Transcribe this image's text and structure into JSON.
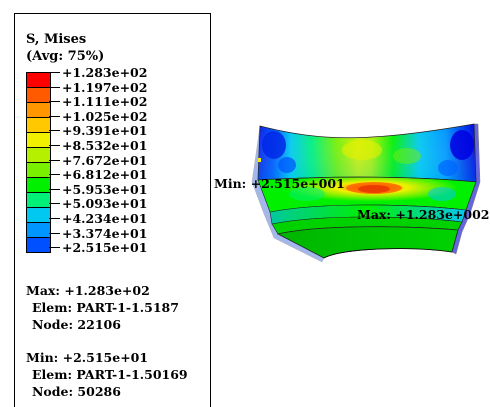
{
  "legend": {
    "title": "S, Mises",
    "subtitle": "(Avg: 75%)",
    "ticks": [
      "+1.283e+02",
      "+1.197e+02",
      "+1.111e+02",
      "+1.025e+02",
      "+9.391e+01",
      "+8.532e+01",
      "+7.672e+01",
      "+6.812e+01",
      "+5.953e+01",
      "+5.093e+01",
      "+4.234e+01",
      "+3.374e+01",
      "+2.515e+01"
    ],
    "colors": [
      "#ff0000",
      "#ff5a00",
      "#ff9600",
      "#ffc800",
      "#f0f000",
      "#b4f000",
      "#78f000",
      "#00f000",
      "#00f078",
      "#00c8f0",
      "#0096ff",
      "#0050ff",
      "#0000e0"
    ]
  },
  "max_info": {
    "line1": "Max: +1.283e+02",
    "line2": "Elem: PART-1-1.5187",
    "line3": "Node: 22106"
  },
  "min_info": {
    "line1": "Min: +2.515e+01",
    "line2": "Elem: PART-1-1.50169",
    "line3": "Node: 50286"
  },
  "model": {
    "min_annotation": "Min: +2.515e+001",
    "max_annotation": "Max: +1.283e+002"
  }
}
